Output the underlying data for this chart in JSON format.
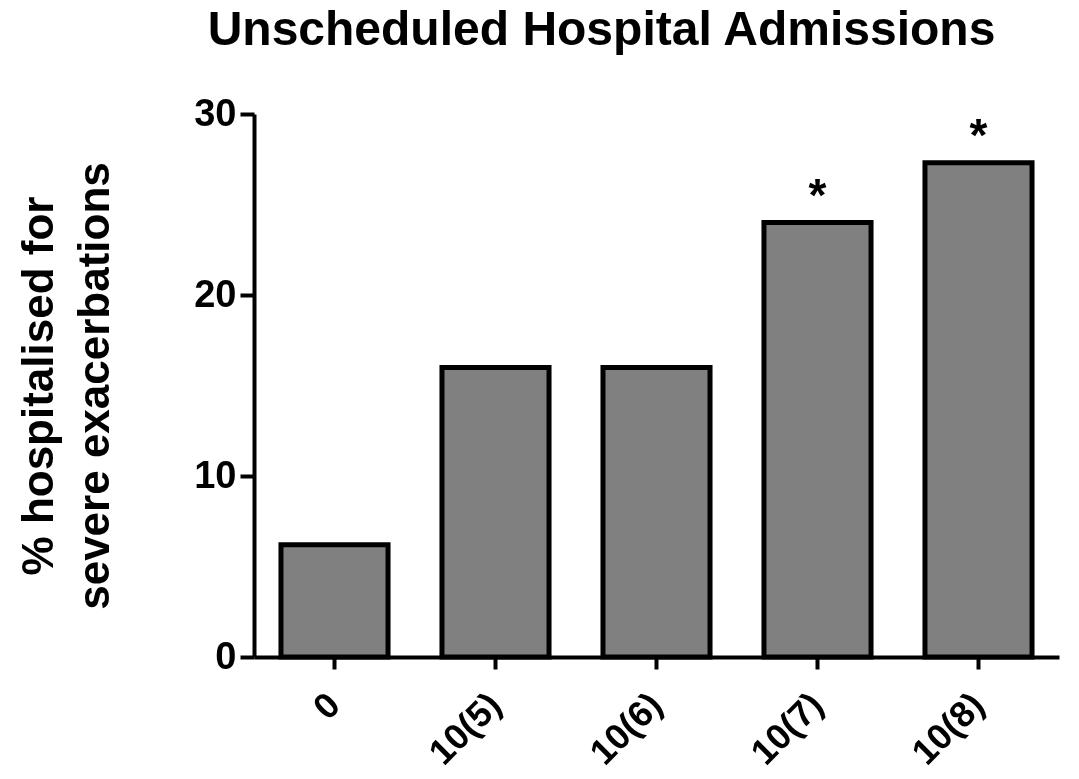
{
  "chart_data": {
    "type": "bar",
    "title": "Unscheduled Hospital Admissions",
    "ylabel": "% hospitalised for\nsevere exacerbations",
    "categories": [
      "0",
      "10(5)",
      "10(6)",
      "10(7)",
      "10(8)"
    ],
    "values": [
      6.2,
      16.0,
      16.0,
      24.0,
      27.3
    ],
    "color": "#808080",
    "ylim": [
      0,
      30
    ],
    "yticks": [
      0,
      10,
      20,
      30
    ],
    "annotations": [
      {
        "text": "*",
        "x": "10(7)",
        "y": 24.0
      },
      {
        "text": "*",
        "x": "10(8)",
        "y": 27.3
      }
    ]
  }
}
